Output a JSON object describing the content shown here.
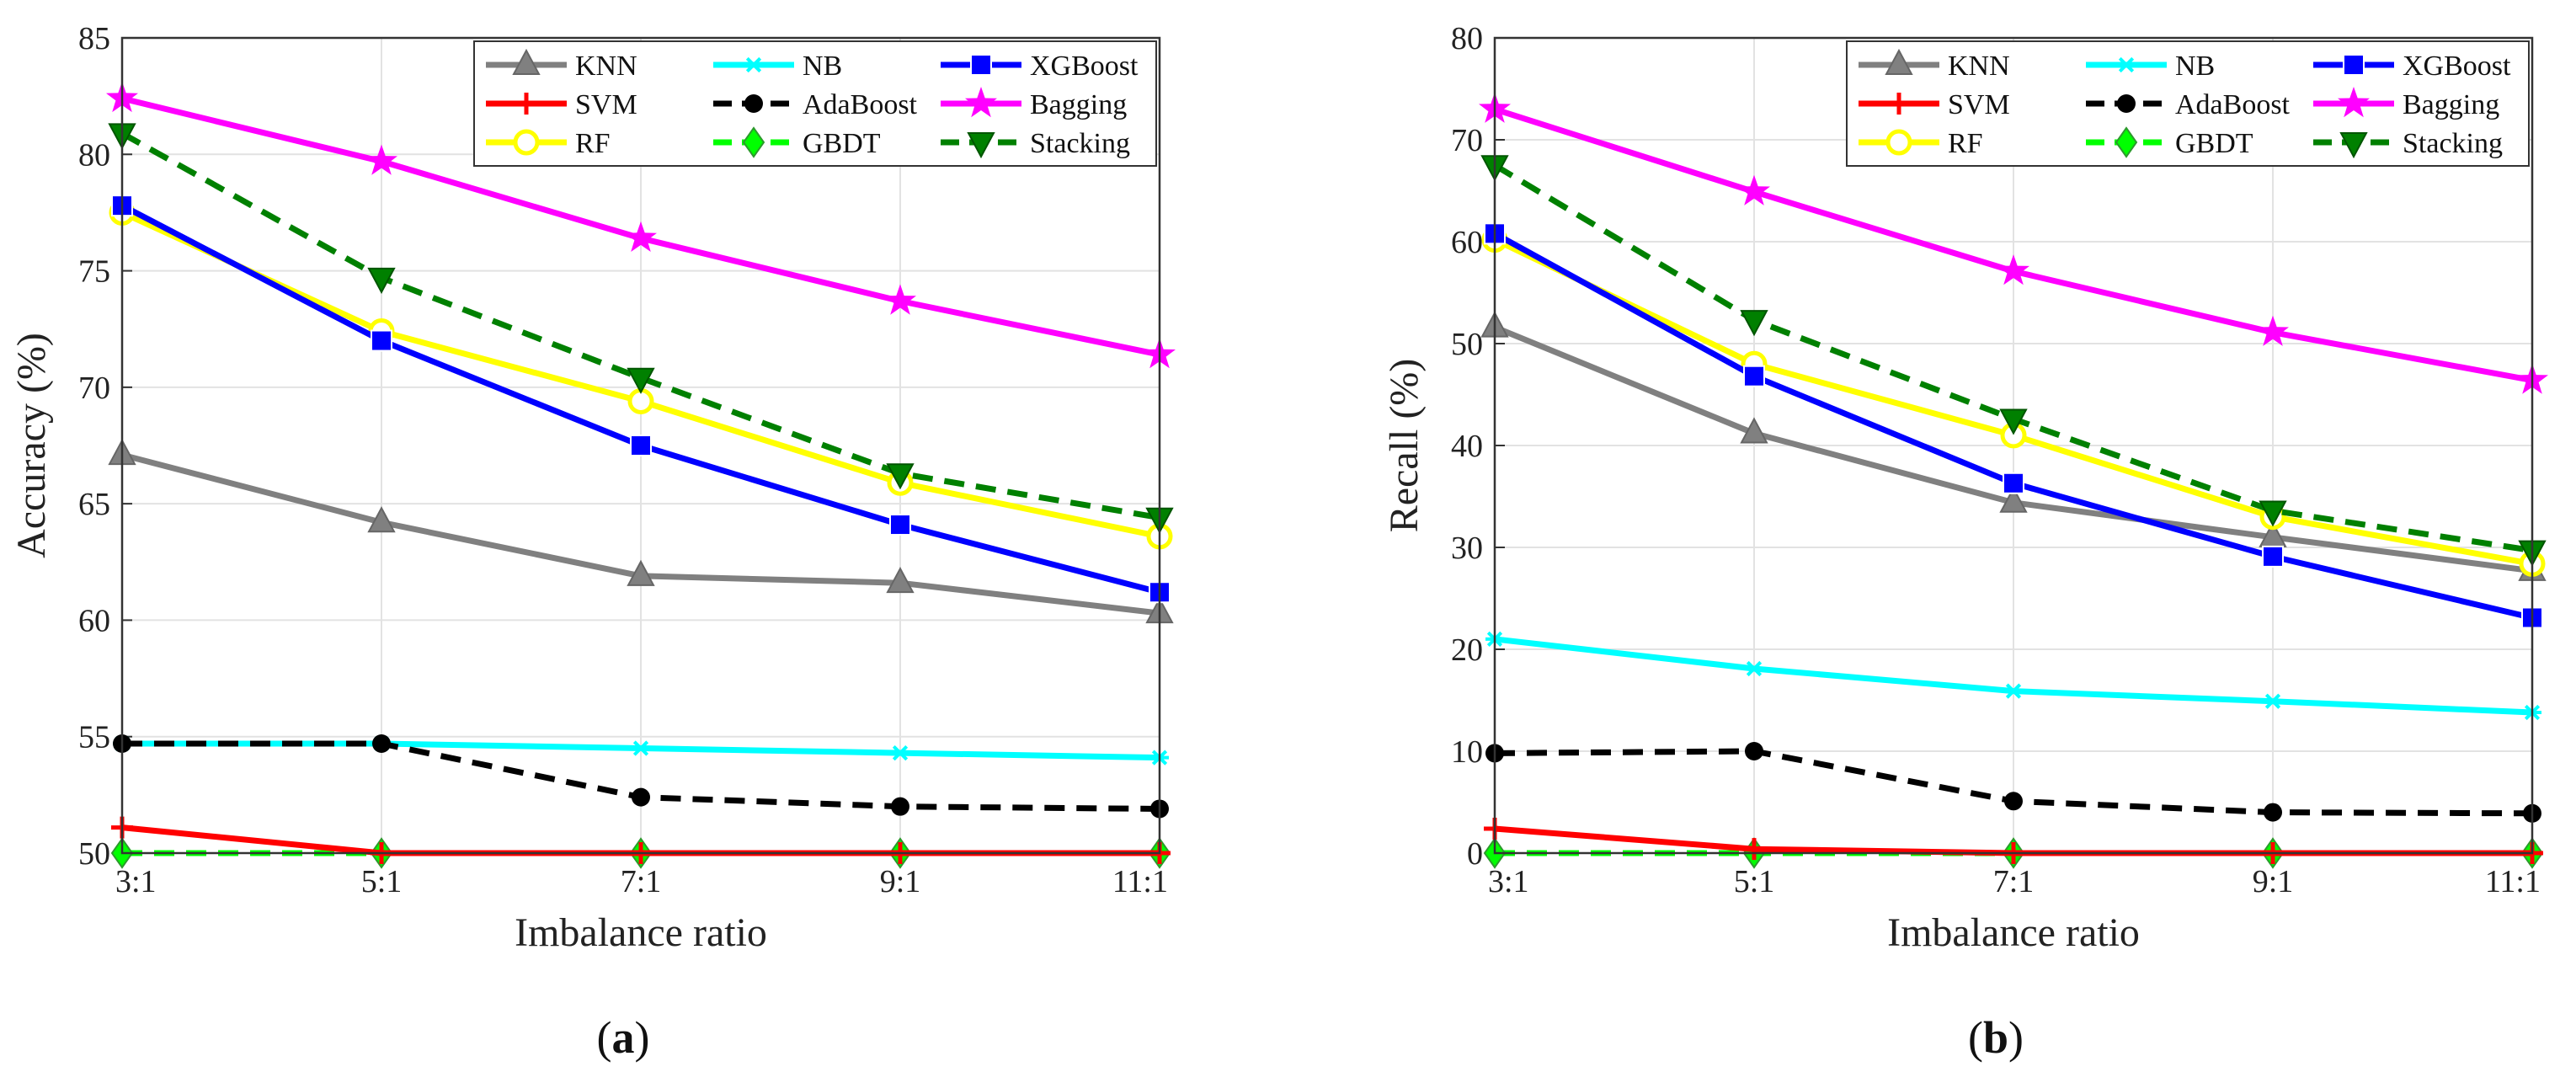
{
  "chart_data": [
    {
      "type": "line",
      "panel_label": "(a)",
      "xlabel": "Imbalance ratio",
      "ylabel": "Accuracy (%)",
      "categories": [
        "3:1",
        "5:1",
        "7:1",
        "9:1",
        "11:1"
      ],
      "ylim": [
        50,
        85
      ],
      "yticks": [
        50,
        55,
        60,
        65,
        70,
        75,
        80,
        85
      ],
      "grid": true,
      "legend_placement": "top-right",
      "series": [
        {
          "name": "KNN",
          "color": "#808080",
          "marker": "triangle-up",
          "dash": "solid",
          "values": [
            67.1,
            64.2,
            61.9,
            61.6,
            60.3
          ]
        },
        {
          "name": "SVM",
          "color": "#ff0000",
          "marker": "plus",
          "dash": "solid",
          "values": [
            51.1,
            50.0,
            50.0,
            50.0,
            50.0
          ]
        },
        {
          "name": "RF",
          "color": "#ffff00",
          "marker": "circle-open",
          "dash": "solid",
          "values": [
            77.5,
            72.4,
            69.4,
            65.9,
            63.6
          ]
        },
        {
          "name": "NB",
          "color": "#00ffff",
          "marker": "asterisk",
          "dash": "solid",
          "values": [
            54.7,
            54.7,
            54.5,
            54.3,
            54.1
          ]
        },
        {
          "name": "AdaBoost",
          "color": "#000000",
          "marker": "circle-filled",
          "dash": "dashed",
          "values": [
            54.7,
            54.7,
            52.4,
            52.0,
            51.9
          ]
        },
        {
          "name": "GBDT",
          "color": "#00ff00",
          "marker": "diamond",
          "dash": "dashed",
          "values": [
            50.0,
            50.0,
            50.0,
            50.0,
            50.0
          ]
        },
        {
          "name": "XGBoost",
          "color": "#0000ff",
          "marker": "square",
          "dash": "solid",
          "values": [
            77.8,
            72.0,
            67.5,
            64.1,
            61.2
          ]
        },
        {
          "name": "Bagging",
          "color": "#ff00ff",
          "marker": "star",
          "dash": "solid",
          "values": [
            82.4,
            79.7,
            76.4,
            73.7,
            71.4
          ]
        },
        {
          "name": "Stacking",
          "color": "#008000",
          "marker": "triangle-down",
          "dash": "dashed",
          "values": [
            80.9,
            74.7,
            70.4,
            66.3,
            64.4
          ]
        }
      ]
    },
    {
      "type": "line",
      "panel_label": "(b)",
      "xlabel": "Imbalance ratio",
      "ylabel": "Recall (%)",
      "categories": [
        "3:1",
        "5:1",
        "7:1",
        "9:1",
        "11:1"
      ],
      "ylim": [
        0,
        80
      ],
      "yticks": [
        0,
        10,
        20,
        30,
        40,
        50,
        60,
        70,
        80
      ],
      "grid": true,
      "legend_placement": "top-right",
      "series": [
        {
          "name": "KNN",
          "color": "#808080",
          "marker": "triangle-up",
          "dash": "solid",
          "values": [
            51.6,
            41.2,
            34.4,
            31.0,
            27.7
          ]
        },
        {
          "name": "SVM",
          "color": "#ff0000",
          "marker": "plus",
          "dash": "solid",
          "values": [
            2.4,
            0.4,
            0.0,
            0.0,
            0.0
          ]
        },
        {
          "name": "RF",
          "color": "#ffff00",
          "marker": "circle-open",
          "dash": "solid",
          "values": [
            60.2,
            48.0,
            41.0,
            33.0,
            28.4
          ]
        },
        {
          "name": "NB",
          "color": "#00ffff",
          "marker": "asterisk",
          "dash": "solid",
          "values": [
            21.0,
            18.1,
            15.9,
            14.9,
            13.8
          ]
        },
        {
          "name": "AdaBoost",
          "color": "#000000",
          "marker": "circle-filled",
          "dash": "dashed",
          "values": [
            9.8,
            10.0,
            5.1,
            4.0,
            3.9
          ]
        },
        {
          "name": "GBDT",
          "color": "#00ff00",
          "marker": "diamond",
          "dash": "dashed",
          "values": [
            0.0,
            0.0,
            0.0,
            0.0,
            0.0
          ]
        },
        {
          "name": "XGBoost",
          "color": "#0000ff",
          "marker": "square",
          "dash": "solid",
          "values": [
            60.8,
            46.8,
            36.3,
            29.1,
            23.1
          ]
        },
        {
          "name": "Bagging",
          "color": "#ff00ff",
          "marker": "star",
          "dash": "solid",
          "values": [
            73.0,
            64.9,
            57.1,
            51.1,
            46.4
          ]
        },
        {
          "name": "Stacking",
          "color": "#008000",
          "marker": "triangle-down",
          "dash": "dashed",
          "values": [
            67.5,
            52.3,
            42.6,
            33.6,
            29.7
          ]
        }
      ]
    }
  ]
}
